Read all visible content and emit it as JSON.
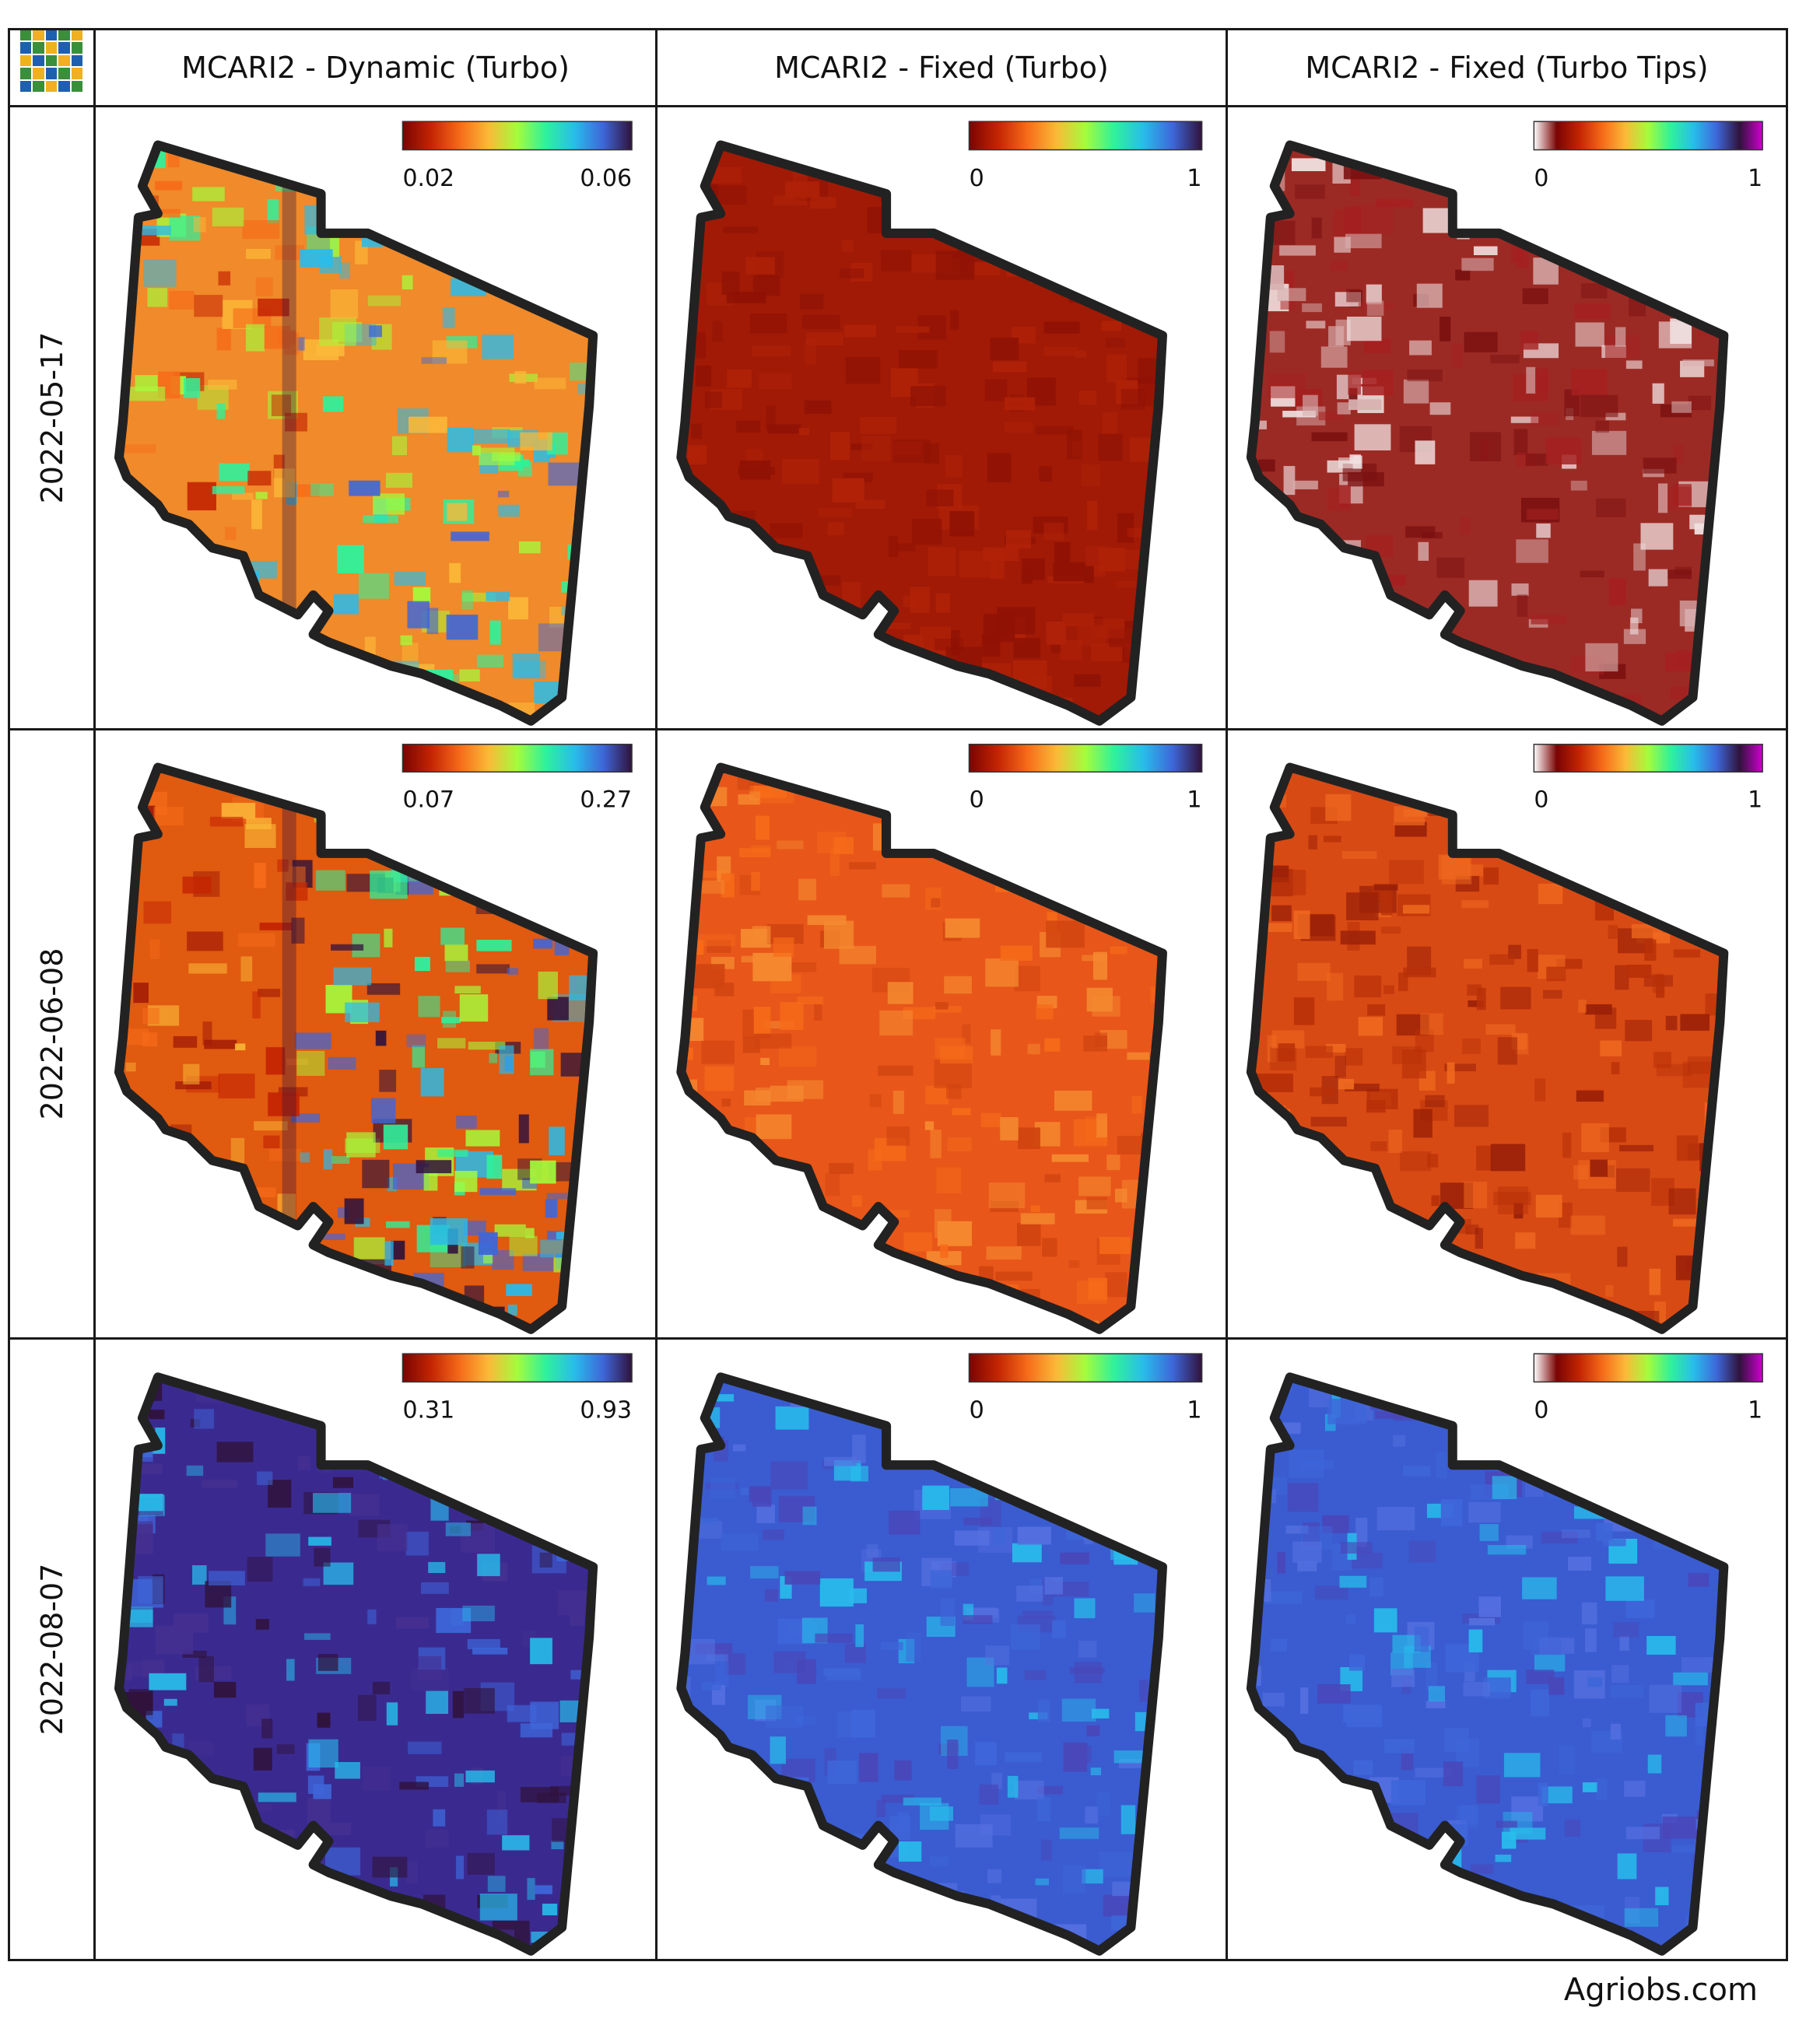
{
  "columns": [
    {
      "label": "MCARI2 - Dynamic (Turbo)"
    },
    {
      "label": "MCARI2 - Fixed (Turbo)"
    },
    {
      "label": "MCARI2 - Fixed (Turbo Tips)"
    }
  ],
  "rows": [
    {
      "date": "2022-05-17",
      "cells": [
        {
          "min": "0.02",
          "max": "0.06",
          "palette": "turbo",
          "fill": "mix-low"
        },
        {
          "min": "0",
          "max": "1",
          "palette": "turbo",
          "fill": "dark-red"
        },
        {
          "min": "0",
          "max": "1",
          "palette": "turbo-tips",
          "fill": "dark-red-white"
        }
      ]
    },
    {
      "date": "2022-06-08",
      "cells": [
        {
          "min": "0.07",
          "max": "0.27",
          "palette": "turbo",
          "fill": "mix-mid"
        },
        {
          "min": "0",
          "max": "1",
          "palette": "turbo",
          "fill": "orange"
        },
        {
          "min": "0",
          "max": "1",
          "palette": "turbo-tips",
          "fill": "orange-dark"
        }
      ]
    },
    {
      "date": "2022-08-07",
      "cells": [
        {
          "min": "0.31",
          "max": "0.93",
          "palette": "turbo",
          "fill": "dark-blue"
        },
        {
          "min": "0",
          "max": "1",
          "palette": "turbo",
          "fill": "blue"
        },
        {
          "min": "0",
          "max": "1",
          "palette": "turbo-tips",
          "fill": "blue"
        }
      ]
    }
  ],
  "footer": "Agriobs.com",
  "colors": {
    "turbo": [
      "#7a0403",
      "#c42503",
      "#f66b19",
      "#fbb938",
      "#a4fc3c",
      "#2ef19c",
      "#28bceb",
      "#3e66d9",
      "#30123b"
    ],
    "turbo_tips": [
      "#ffffff",
      "#7a0403",
      "#c42503",
      "#f66b19",
      "#fbb938",
      "#a4fc3c",
      "#2ef19c",
      "#28bceb",
      "#3e66d9",
      "#30123b",
      "#d000d0"
    ]
  }
}
